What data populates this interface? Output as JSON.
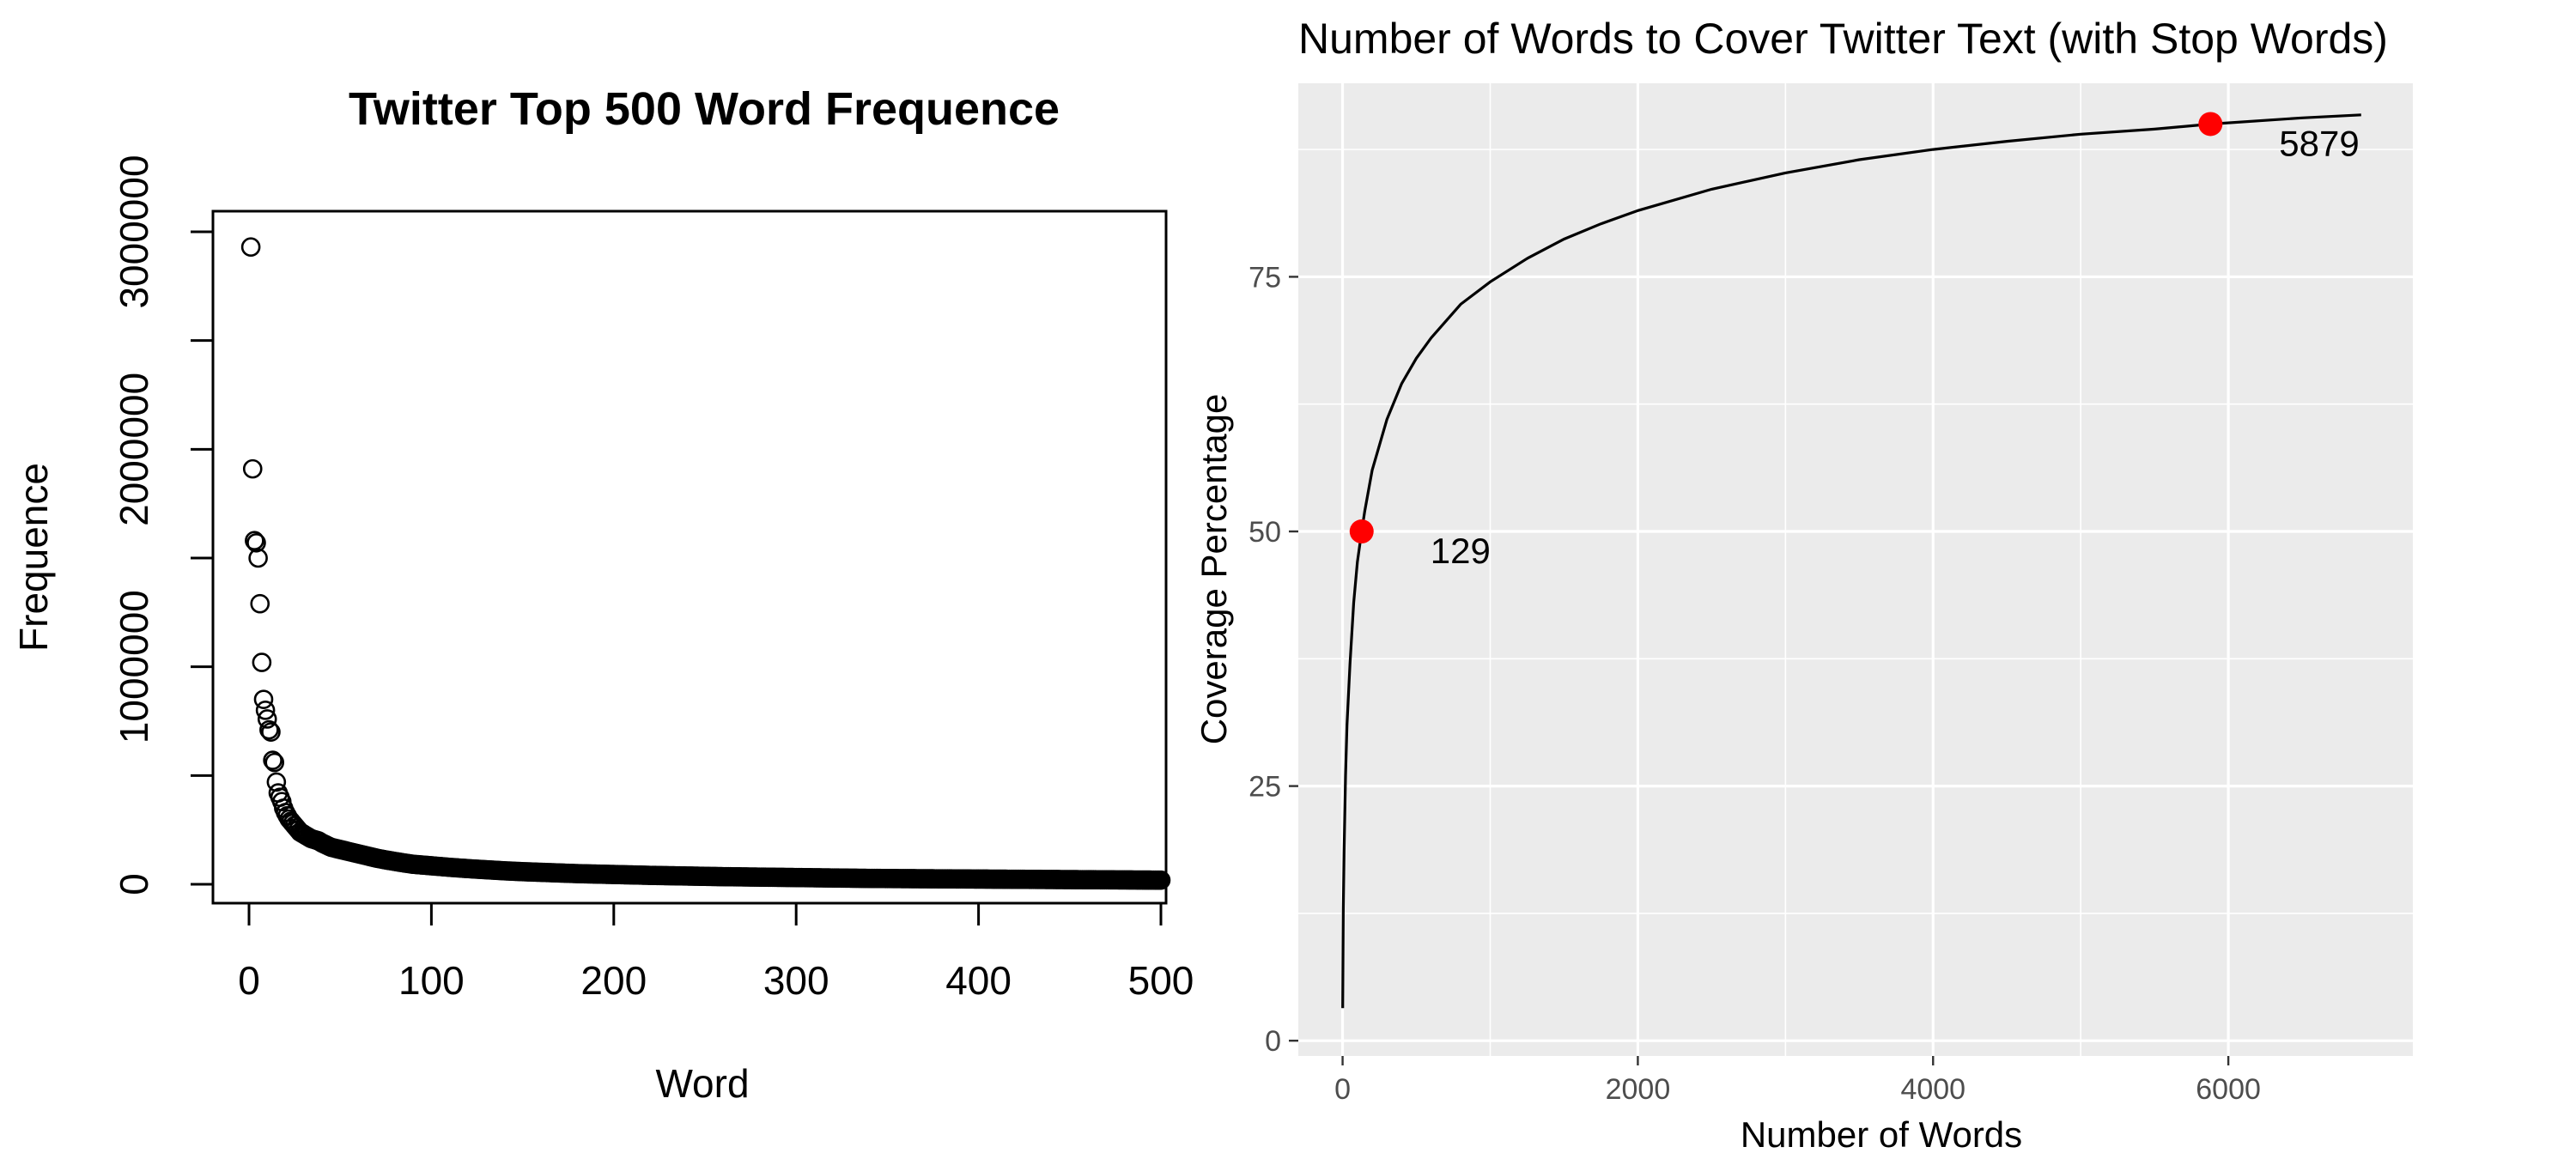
{
  "chart_data": [
    {
      "type": "scatter",
      "title": "Twitter Top 500 Word Frequence",
      "xlabel": "Word",
      "ylabel": "Frequence",
      "xlim": [
        0,
        500
      ],
      "ylim": [
        0,
        3000000
      ],
      "x_ticks": [
        0,
        100,
        200,
        300,
        400,
        500
      ],
      "x_tick_labels": [
        "0",
        "100",
        "200",
        "300",
        "400",
        "500"
      ],
      "y_ticks": [
        0,
        500000,
        1000000,
        1500000,
        2000000,
        2500000,
        3000000
      ],
      "y_tick_labels": [
        "0",
        "1000000",
        "2000000",
        "3000000"
      ],
      "y_labeled_ticks": [
        0,
        1000000,
        2000000,
        3000000
      ],
      "grid": false,
      "marker": "open-circle",
      "series": [
        {
          "x": [
            1,
            2,
            3,
            4,
            5,
            6,
            7,
            8,
            9,
            10,
            11,
            12,
            13,
            14,
            15,
            16,
            17,
            18,
            19,
            20,
            22,
            24,
            26,
            28,
            30,
            32,
            34,
            36,
            38,
            40,
            45,
            50,
            55,
            60,
            65,
            70,
            75,
            80,
            85,
            90,
            100,
            110,
            120,
            130,
            140,
            150,
            160,
            170,
            180,
            190,
            200,
            220,
            240,
            260,
            280,
            300,
            320,
            340,
            360,
            380,
            400,
            420,
            440,
            460,
            480,
            500
          ],
          "y": [
            2930000,
            1910000,
            1580000,
            1570000,
            1500000,
            1290000,
            1020000,
            850000,
            800000,
            760000,
            710000,
            700000,
            570000,
            560000,
            470000,
            420000,
            400000,
            380000,
            350000,
            330000,
            300000,
            280000,
            260000,
            240000,
            230000,
            220000,
            210000,
            205000,
            200000,
            190000,
            170000,
            160000,
            150000,
            140000,
            130000,
            120000,
            112000,
            105000,
            98000,
            92000,
            85000,
            78000,
            72000,
            67000,
            62000,
            58000,
            55000,
            52000,
            49000,
            47000,
            45000,
            41000,
            38000,
            35000,
            33000,
            31000,
            29000,
            27000,
            26000,
            25000,
            24000,
            23000,
            22000,
            21000,
            20000,
            19000
          ]
        }
      ]
    },
    {
      "type": "line",
      "title": "Number of Words to Cover Twitter Text (with Stop Words)",
      "xlabel": "Number of Words",
      "ylabel": "Coverage Percentage",
      "xlim": [
        -300,
        7250
      ],
      "ylim": [
        -1.5,
        94
      ],
      "x_ticks": [
        0,
        2000,
        4000,
        6000
      ],
      "x_tick_labels": [
        "0",
        "2000",
        "4000",
        "6000"
      ],
      "y_ticks": [
        0,
        25,
        50,
        75
      ],
      "y_tick_labels": [
        "0",
        "25",
        "50",
        "75"
      ],
      "grid": true,
      "background": "#ebebeb",
      "line_color": "#000000",
      "point_color": "#ff0000",
      "series": [
        {
          "x": [
            1,
            3,
            5,
            10,
            20,
            30,
            50,
            75,
            100,
            129,
            150,
            200,
            300,
            400,
            500,
            600,
            800,
            1000,
            1250,
            1500,
            1750,
            2000,
            2500,
            3000,
            3500,
            4000,
            4500,
            5000,
            5500,
            5879,
            6500,
            6900
          ],
          "y": [
            3.2,
            9,
            13,
            18.5,
            26,
            31,
            37,
            43,
            47,
            50,
            52,
            56,
            61,
            64.5,
            67,
            69,
            72.3,
            74.5,
            76.8,
            78.7,
            80.2,
            81.5,
            83.6,
            85.2,
            86.5,
            87.5,
            88.3,
            89,
            89.5,
            90,
            90.6,
            90.9
          ]
        }
      ],
      "highlight_points": [
        {
          "x": 129,
          "y": 50,
          "label": "129"
        },
        {
          "x": 5879,
          "y": 90,
          "label": "5879"
        }
      ]
    }
  ]
}
